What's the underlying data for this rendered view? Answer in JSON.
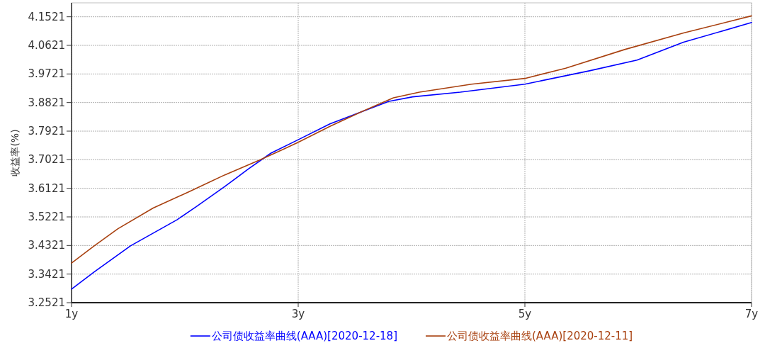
{
  "chart_data": {
    "type": "line",
    "ylabel": "收益率(%)",
    "xlim": [
      1,
      7
    ],
    "ylim": [
      3.2521,
      4.196
    ],
    "xticks": [
      {
        "value": 1,
        "label": "1y"
      },
      {
        "value": 3,
        "label": "3y"
      },
      {
        "value": 5,
        "label": "5y"
      },
      {
        "value": 7,
        "label": "7y"
      }
    ],
    "yticks": [
      3.2521,
      3.3421,
      3.4321,
      3.5221,
      3.6121,
      3.7021,
      3.7921,
      3.8821,
      3.9721,
      4.0621,
      4.1521
    ],
    "grid": true,
    "legend": "bottom",
    "series": [
      {
        "name": "公司债收益率曲线(AAA)[2020-12-18]",
        "color": "#0000ff",
        "x": [
          1,
          1.2,
          1.52,
          1.93,
          2.1,
          2.35,
          2.56,
          2.76,
          3,
          3.28,
          3.55,
          3.8,
          4.01,
          4.43,
          5,
          5.57,
          5.99,
          6.4,
          7
        ],
        "values": [
          3.295,
          3.349,
          3.431,
          3.513,
          3.554,
          3.617,
          3.673,
          3.723,
          3.765,
          3.815,
          3.852,
          3.886,
          3.9,
          3.915,
          3.94,
          3.982,
          4.016,
          4.072,
          4.134
        ]
      },
      {
        "name": "公司债收益率曲线(AAA)[2020-12-11]",
        "color": "#a8400f",
        "x": [
          1,
          1.2,
          1.41,
          1.72,
          2.04,
          2.35,
          2.66,
          2.87,
          3,
          3.28,
          3.55,
          3.84,
          4.07,
          4.53,
          5,
          5.36,
          5.88,
          6.4,
          7
        ],
        "values": [
          3.377,
          3.431,
          3.485,
          3.55,
          3.602,
          3.654,
          3.701,
          3.735,
          3.757,
          3.807,
          3.852,
          3.897,
          3.915,
          3.94,
          3.958,
          3.99,
          4.049,
          4.101,
          4.155
        ]
      }
    ]
  }
}
